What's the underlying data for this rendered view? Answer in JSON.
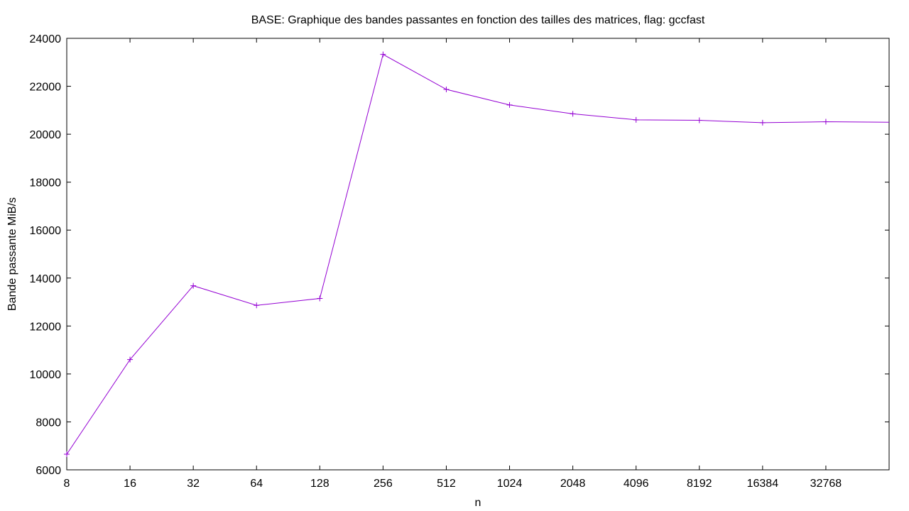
{
  "chart_data": {
    "type": "line",
    "title": "BASE: Graphique des bandes passantes en fonction des tailles des matrices, flag: gccfast",
    "xlabel": "n",
    "ylabel": "Bande passante MiB/s",
    "x_scale": "log2",
    "x": [
      8,
      16,
      32,
      64,
      128,
      256,
      512,
      1024,
      2048,
      4096,
      8192,
      16384,
      32768,
      65536
    ],
    "x_ticks": [
      8,
      16,
      32,
      64,
      128,
      256,
      512,
      1024,
      2048,
      4096,
      8192,
      16384,
      32768
    ],
    "xlim": [
      8,
      65536
    ],
    "ylim": [
      6000,
      24000
    ],
    "y_ticks": [
      6000,
      8000,
      10000,
      12000,
      14000,
      16000,
      18000,
      20000,
      22000,
      24000
    ],
    "grid": false,
    "series": [
      {
        "values": [
          6650,
          10600,
          13680,
          12860,
          13150,
          23330,
          21870,
          21220,
          20850,
          20600,
          20580,
          20480,
          20520,
          20500
        ],
        "color": "#9400d3",
        "marker": "plus"
      }
    ]
  }
}
